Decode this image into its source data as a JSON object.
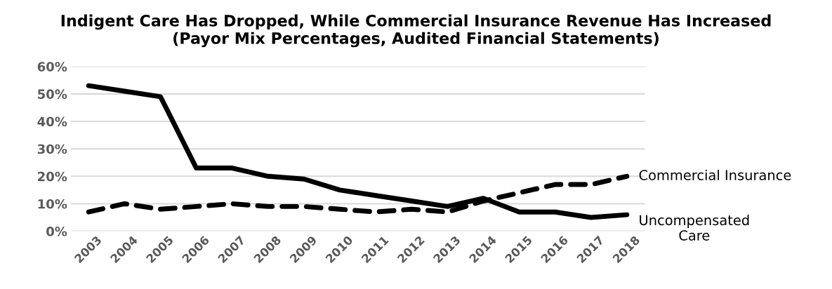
{
  "chart_data": {
    "type": "line",
    "title": "Indigent Care Has Dropped, While Commercial Insurance Revenue Has Increased\n(Payor Mix Percentages, Audited Financial Statements)",
    "categories": [
      "2003",
      "2004",
      "2005",
      "2006",
      "2007",
      "2008",
      "2009",
      "2010",
      "2011",
      "2012",
      "2013",
      "2014",
      "2015",
      "2016",
      "2017",
      "2018"
    ],
    "series": [
      {
        "name": "Uncompensated\nCare",
        "color": "#000000",
        "line_style": "solid",
        "values": [
          53,
          51,
          49,
          23,
          23,
          20,
          19,
          15,
          13,
          11,
          9,
          12,
          7,
          7,
          5,
          6
        ]
      },
      {
        "name": "Commercial Insurance",
        "color": "#000000",
        "line_style": "dashed",
        "values": [
          7,
          10,
          8,
          9,
          10,
          9,
          9,
          8,
          7,
          8,
          7,
          11,
          14,
          17,
          17,
          20
        ]
      }
    ],
    "ylim": [
      0,
      60
    ],
    "yticks": [
      {
        "value": 0,
        "label": "0%"
      },
      {
        "value": 10,
        "label": "10%"
      },
      {
        "value": 20,
        "label": "20%"
      },
      {
        "value": 30,
        "label": "30%"
      },
      {
        "value": 40,
        "label": "40%"
      },
      {
        "value": 50,
        "label": "50%"
      },
      {
        "value": 60,
        "label": "60%"
      }
    ],
    "grid": "y",
    "legend": false,
    "marker": "none"
  }
}
